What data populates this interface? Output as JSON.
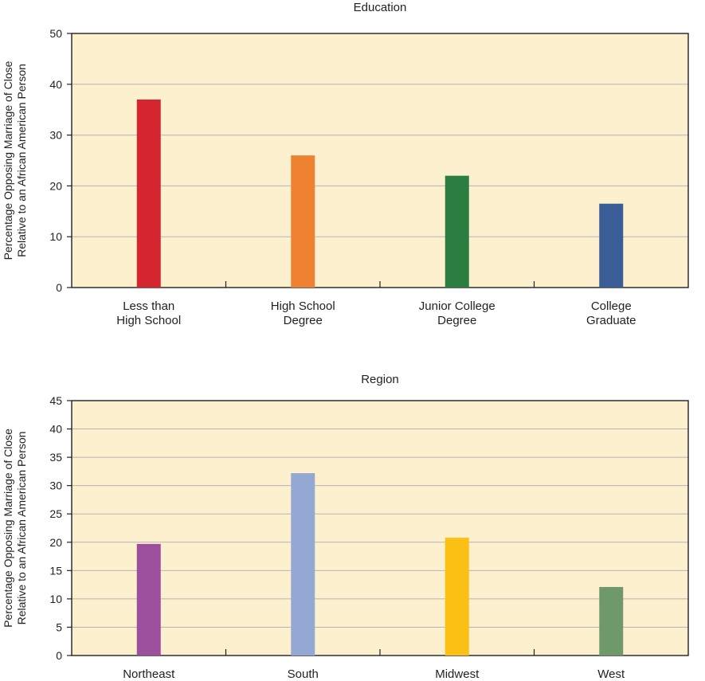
{
  "chart_data": [
    {
      "type": "bar",
      "title": "Education",
      "ylabel": [
        "Percentage Opposing Marriage of Close",
        "Relative to an African American Person"
      ],
      "xlabel": "",
      "ylim": [
        0,
        50
      ],
      "yticks": [
        0,
        10,
        20,
        30,
        40,
        50
      ],
      "grid": true,
      "plot_background": "#fdf0cf",
      "categories": [
        [
          "Less than",
          "High School"
        ],
        [
          "High School",
          "Degree"
        ],
        [
          "Junior College",
          "Degree"
        ],
        [
          "College",
          "Graduate"
        ]
      ],
      "values": [
        37,
        26,
        22,
        16.5
      ],
      "colors": [
        "#d42530",
        "#ee8230",
        "#2a7f40",
        "#3a5d98"
      ]
    },
    {
      "type": "bar",
      "title": "Region",
      "ylabel": [
        "Percentage Opposing Marriage of Close",
        "Relative to an African American Person"
      ],
      "xlabel": "",
      "ylim": [
        0,
        45
      ],
      "yticks": [
        0,
        5,
        10,
        15,
        20,
        25,
        30,
        35,
        40,
        45
      ],
      "grid": true,
      "plot_background": "#fdf0cf",
      "categories": [
        [
          "Northeast"
        ],
        [
          "South"
        ],
        [
          "Midwest"
        ],
        [
          "West"
        ]
      ],
      "values": [
        19.7,
        32.2,
        20.8,
        12.1
      ],
      "colors": [
        "#9b4f9d",
        "#93a9d4",
        "#fcc014",
        "#70996a"
      ]
    }
  ]
}
